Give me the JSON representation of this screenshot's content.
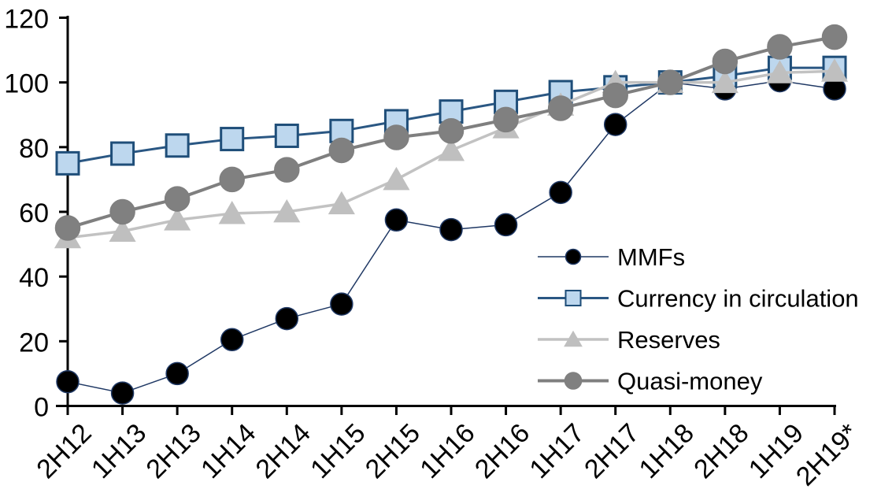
{
  "chart_data": {
    "type": "line",
    "title": "",
    "xlabel": "",
    "ylabel": "",
    "categories": [
      "2H12",
      "1H13",
      "2H13",
      "1H14",
      "2H14",
      "1H15",
      "2H15",
      "1H16",
      "2H16",
      "1H17",
      "2H17",
      "1H18",
      "2H18",
      "1H19",
      "2H19*"
    ],
    "y_ticks": [
      0,
      20,
      40,
      60,
      80,
      100,
      120
    ],
    "ylim": [
      0,
      120
    ],
    "grid": false,
    "legend_position": "inside-right",
    "background_color": "#ffffff",
    "axis_color": "#000000",
    "series": [
      {
        "name": "MMFs",
        "values": [
          7.5,
          4,
          10,
          20.5,
          27,
          31.5,
          57.5,
          54.5,
          56,
          66,
          87,
          100,
          98,
          100.5,
          98
        ],
        "line_color": "#1F3864",
        "line_width": 1.5,
        "marker": "circle",
        "marker_fill": "#000000",
        "marker_stroke": "#1F3864",
        "marker_size": 28
      },
      {
        "name": "Currency in circulation",
        "values": [
          75,
          78,
          80.5,
          82.5,
          83.5,
          85,
          88,
          91,
          94,
          97,
          98.5,
          100,
          102,
          104.5,
          104.5
        ],
        "line_color": "#2A5783",
        "line_width": 3,
        "marker": "square",
        "marker_fill": "#BDD7EE",
        "marker_stroke": "#1F4E79",
        "marker_size": 28
      },
      {
        "name": "Reserves",
        "values": [
          52,
          54,
          57.5,
          59.5,
          60,
          62.5,
          70,
          79,
          86,
          93,
          100,
          100,
          100,
          103,
          103.5
        ],
        "line_color": "#C2C2C2",
        "line_width": 3.5,
        "marker": "triangle",
        "marker_fill": "#BFBFBF",
        "marker_stroke": "#BFBFBF",
        "marker_size": 30
      },
      {
        "name": "Quasi-money",
        "values": [
          55,
          60,
          64,
          70,
          73,
          79,
          83,
          85,
          88.5,
          92,
          96,
          100,
          106.5,
          111,
          114
        ],
        "line_color": "#7F7F7F",
        "line_width": 4,
        "marker": "circle",
        "marker_fill": "#808080",
        "marker_stroke": "#7F7F7F",
        "marker_size": 31
      }
    ]
  }
}
